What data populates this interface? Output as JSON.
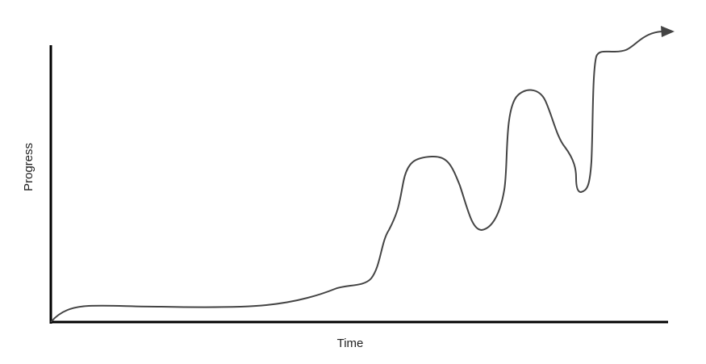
{
  "axes": {
    "x_label": "Time",
    "y_label": "Progress"
  }
}
